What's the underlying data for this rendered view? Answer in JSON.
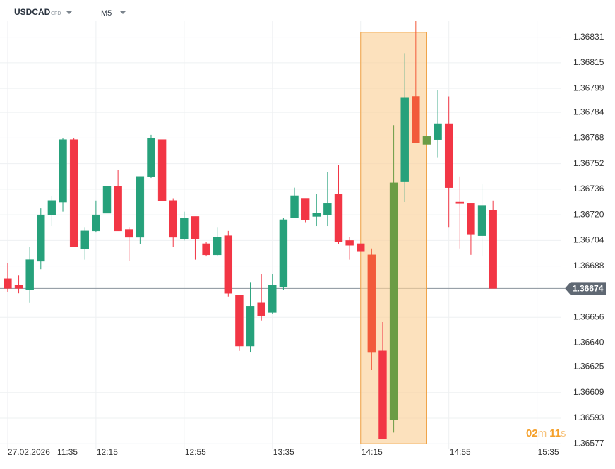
{
  "symbol": "USDCAD",
  "instrument_type": "CFD",
  "timeframe": "M5",
  "timer": [
    "02",
    "m",
    "11",
    "s"
  ],
  "chart_data": {
    "type": "candlestick",
    "date": "27.02.2026",
    "x": [
      0,
      1,
      2,
      3,
      4,
      5,
      6,
      7,
      8,
      9,
      10,
      11,
      12,
      13,
      14,
      15,
      16,
      17,
      18,
      19,
      20,
      21,
      22,
      23,
      24,
      25,
      26,
      27,
      28,
      29,
      30,
      31,
      32,
      33,
      34,
      35,
      36,
      37,
      38,
      39,
      40,
      41,
      42,
      43,
      44
    ],
    "open": [
      1.3668,
      1.36676,
      1.36673,
      1.36691,
      1.3672,
      1.36728,
      1.36767,
      1.36699,
      1.3671,
      1.36721,
      1.36738,
      1.36711,
      1.36706,
      1.36744,
      1.36767,
      1.36729,
      1.36705,
      1.36719,
      1.36702,
      1.36695,
      1.36707,
      1.3667,
      1.36638,
      1.36665,
      1.36659,
      1.36675,
      1.36718,
      1.3673,
      1.36719,
      1.3672,
      1.36733,
      1.36704,
      1.36702,
      1.36695,
      1.36635,
      1.36592,
      1.36741,
      1.36794,
      1.36764,
      1.36767,
      1.36777,
      1.36728,
      1.36727,
      1.36707,
      1.36723
    ],
    "high": [
      1.3669,
      1.36682,
      1.367,
      1.36724,
      1.36732,
      1.36768,
      1.36768,
      1.36712,
      1.36729,
      1.36741,
      1.36748,
      1.36712,
      1.36744,
      1.3677,
      1.36767,
      1.3673,
      1.36722,
      1.36719,
      1.36703,
      1.36712,
      1.3671,
      1.3667,
      1.36678,
      1.36683,
      1.36683,
      1.36718,
      1.36737,
      1.3673,
      1.36733,
      1.36747,
      1.36751,
      1.36706,
      1.36702,
      1.36699,
      1.36653,
      1.36776,
      1.36821,
      1.36841,
      1.36769,
      1.36798,
      1.36794,
      1.36744,
      1.36727,
      1.36739,
      1.36729
    ],
    "low": [
      1.36672,
      1.36671,
      1.36665,
      1.36686,
      1.36713,
      1.36722,
      1.367,
      1.36692,
      1.36709,
      1.3672,
      1.3671,
      1.36691,
      1.36702,
      1.36743,
      1.36729,
      1.367,
      1.36704,
      1.36692,
      1.36694,
      1.36694,
      1.36669,
      1.36635,
      1.36634,
      1.36654,
      1.36658,
      1.36673,
      1.36718,
      1.36715,
      1.36713,
      1.36713,
      1.36702,
      1.36692,
      1.36697,
      1.36623,
      1.3658,
      1.36584,
      1.36728,
      1.36765,
      1.36764,
      1.36756,
      1.36712,
      1.36699,
      1.36695,
      1.36694,
      1.36674
    ],
    "close": [
      1.36674,
      1.36674,
      1.36692,
      1.3672,
      1.36729,
      1.36767,
      1.367,
      1.3671,
      1.3672,
      1.36738,
      1.3671,
      1.36706,
      1.36744,
      1.36768,
      1.36729,
      1.36706,
      1.36718,
      1.36705,
      1.36695,
      1.36706,
      1.36671,
      1.36638,
      1.36663,
      1.36657,
      1.36676,
      1.36717,
      1.36732,
      1.36717,
      1.36721,
      1.36727,
      1.36703,
      1.36701,
      1.36697,
      1.36634,
      1.3658,
      1.3674,
      1.36793,
      1.36765,
      1.36769,
      1.36777,
      1.36737,
      1.36727,
      1.36708,
      1.36726,
      1.36674
    ],
    "up_color": "#26a17b",
    "down_color": "#f23645",
    "highlighted": [
      33,
      35,
      37,
      38
    ],
    "highlight_up_color": "#6b9c45",
    "highlight_down_color": "#f25a3a",
    "highlight_box": {
      "x": [
        32,
        38
      ],
      "y": [
        1.36834,
        1.36577
      ],
      "color": "#fbd19a"
    },
    "current_price": 1.36674,
    "xlim": [
      -0.7,
      50.2
    ],
    "ylim": [
      1.36574,
      1.36841
    ],
    "xticks": [
      {
        "value": 0,
        "label": "11:35"
      },
      {
        "value": 8,
        "label": "12:15"
      },
      {
        "value": 16,
        "label": "12:55"
      },
      {
        "value": 24,
        "label": "13:35"
      },
      {
        "value": 32,
        "label": "14:15"
      },
      {
        "value": 40,
        "label": "14:55"
      },
      {
        "value": 48,
        "label": "15:35"
      }
    ],
    "yticks": [
      1.36831,
      1.36815,
      1.36799,
      1.36784,
      1.36768,
      1.36752,
      1.36736,
      {
        "value": 1.3672,
        "label": "1.36720"
      },
      1.36704,
      1.36688,
      1.36656,
      {
        "value": 1.3664,
        "label": "1.36640"
      },
      1.36625,
      1.36609,
      1.36593,
      1.36577
    ],
    "grid": true
  }
}
